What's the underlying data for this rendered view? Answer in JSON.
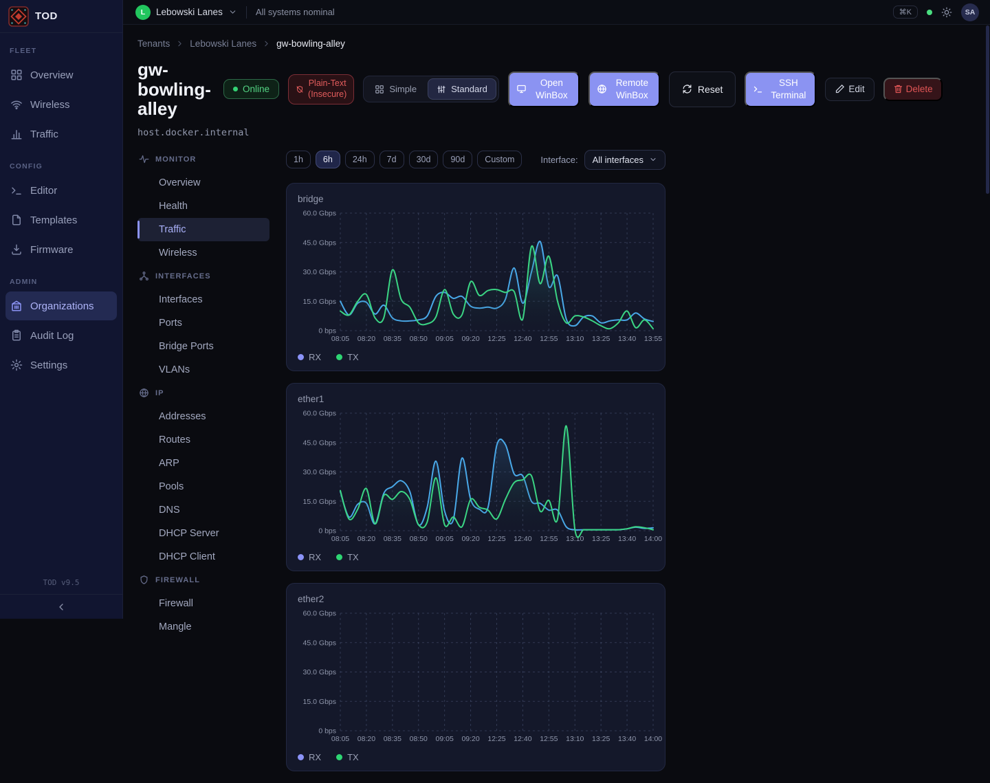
{
  "colors": {
    "accent": "#8b93f4",
    "green": "#2ed573",
    "blue": "#49a8e8",
    "red": "#e05555"
  },
  "sidebar": {
    "brand": "TOD",
    "version": "TOD v9.5",
    "sections": [
      {
        "label": "FLEET",
        "items": [
          {
            "label": "Overview",
            "icon": "grid-icon",
            "active": false
          },
          {
            "label": "Wireless",
            "icon": "wifi-icon",
            "active": false
          },
          {
            "label": "Traffic",
            "icon": "bar-chart-icon",
            "active": false
          }
        ]
      },
      {
        "label": "CONFIG",
        "items": [
          {
            "label": "Editor",
            "icon": "terminal-icon",
            "active": false
          },
          {
            "label": "Templates",
            "icon": "file-icon",
            "active": false
          },
          {
            "label": "Firmware",
            "icon": "download-icon",
            "active": false
          }
        ]
      },
      {
        "label": "ADMIN",
        "items": [
          {
            "label": "Organizations",
            "icon": "building-icon",
            "active": true
          },
          {
            "label": "Audit Log",
            "icon": "clipboard-icon",
            "active": false
          },
          {
            "label": "Settings",
            "icon": "gear-icon",
            "active": false
          }
        ]
      }
    ]
  },
  "topbar": {
    "tenant": "Lebowski Lanes",
    "tenant_initial": "L",
    "status": "All systems nominal",
    "shortcut": "⌘K",
    "user_initials": "SA"
  },
  "breadcrumb": {
    "items": [
      "Tenants",
      "Lebowski Lanes",
      "gw-bowling-alley"
    ]
  },
  "device": {
    "name": "gw-bowling-alley",
    "status": "Online",
    "warning_line1": "Plain-Text",
    "warning_line2": "(Insecure)",
    "host": "host.docker.internal"
  },
  "view_toggle": {
    "options": [
      "Simple",
      "Standard"
    ],
    "selected": "Standard"
  },
  "actions": {
    "open_winbox": "Open WinBox",
    "remote_winbox": "Remote WinBox",
    "reset": "Reset",
    "ssh_terminal": "SSH Terminal",
    "edit": "Edit",
    "delete": "Delete"
  },
  "device_nav": {
    "sections": [
      {
        "label": "MONITOR",
        "icon": "activity-icon",
        "items": [
          "Overview",
          "Health",
          "Traffic",
          "Wireless"
        ],
        "active_item": "Traffic"
      },
      {
        "label": "INTERFACES",
        "icon": "network-icon",
        "items": [
          "Interfaces",
          "Ports",
          "Bridge Ports",
          "VLANs"
        ],
        "active_item": ""
      },
      {
        "label": "IP",
        "icon": "globe-icon",
        "items": [
          "Addresses",
          "Routes",
          "ARP",
          "Pools",
          "DNS",
          "DHCP Server",
          "DHCP Client"
        ],
        "active_item": ""
      },
      {
        "label": "FIREWALL",
        "icon": "shield-icon",
        "items": [
          "Firewall",
          "Mangle"
        ],
        "active_item": ""
      }
    ]
  },
  "controls": {
    "time_ranges": [
      "1h",
      "6h",
      "24h",
      "7d",
      "30d",
      "90d",
      "Custom"
    ],
    "selected_range": "6h",
    "interface_label": "Interface:",
    "interface_value": "All interfaces"
  },
  "chart_data": [
    {
      "type": "line",
      "title": "bridge",
      "ylim": [
        0,
        60
      ],
      "y_ticks": {
        "values": [
          0,
          15,
          30,
          45,
          60
        ],
        "labels": [
          "0 bps",
          "15.0 Gbps",
          "30.0 Gbps",
          "45.0 Gbps",
          "60.0 Gbps"
        ]
      },
      "x_ticks": [
        "08:05",
        "08:20",
        "08:35",
        "08:50",
        "09:05",
        "09:20",
        "12:25",
        "12:40",
        "12:55",
        "13:10",
        "13:25",
        "13:40",
        "13:55"
      ],
      "grid": "dashed",
      "legend_position": "bottom-left",
      "series": [
        {
          "name": "RX",
          "line_color": "#49a8e8",
          "legend_color": "#8b93f8",
          "values": [
            15,
            8,
            14,
            14.5,
            8.5,
            13,
            6.5,
            5,
            5,
            5.5,
            7.5,
            17.5,
            19.5,
            16.5,
            17.5,
            12.5,
            11.5,
            12,
            11.5,
            16,
            32,
            14,
            30,
            45.5,
            22.5,
            28,
            6,
            2.5,
            7,
            7.5,
            4,
            5,
            5.5,
            5.5,
            9,
            6,
            4.7
          ]
        },
        {
          "name": "TX",
          "line_color": "#3bd584",
          "legend_color": "#2ed573",
          "values": [
            10,
            8,
            15,
            18.5,
            6.5,
            6.5,
            31,
            16,
            12,
            4,
            3.5,
            7,
            21,
            8.5,
            8,
            25,
            18,
            20.5,
            21,
            19.5,
            20,
            6,
            43,
            24,
            38,
            15,
            4,
            7.5,
            7,
            5,
            2.5,
            1,
            4,
            10,
            1.5,
            5.5,
            1
          ]
        }
      ]
    },
    {
      "type": "line",
      "title": "ether1",
      "ylim": [
        0,
        60
      ],
      "y_ticks": {
        "values": [
          0,
          15,
          30,
          45,
          60
        ],
        "labels": [
          "0 bps",
          "15.0 Gbps",
          "30.0 Gbps",
          "45.0 Gbps",
          "60.0 Gbps"
        ]
      },
      "x_ticks": [
        "08:05",
        "08:20",
        "08:35",
        "08:50",
        "09:05",
        "09:20",
        "12:25",
        "12:40",
        "12:55",
        "13:10",
        "13:25",
        "13:40",
        "14:00"
      ],
      "grid": "dashed",
      "legend_position": "bottom-left",
      "series": [
        {
          "name": "RX",
          "line_color": "#49a8e8",
          "legend_color": "#8b93f8",
          "values": [
            20,
            7,
            13.5,
            14,
            3.5,
            19,
            22.5,
            25.5,
            20,
            3,
            12,
            35.5,
            10,
            5.5,
            37,
            16,
            11,
            12,
            43.5,
            44,
            29,
            28,
            15,
            14,
            10.5,
            10.5,
            2,
            0.5,
            0.5,
            0.5,
            0.5,
            0.5,
            0.5,
            1,
            1.8,
            1.2,
            1.5
          ]
        },
        {
          "name": "TX",
          "line_color": "#3bd584",
          "legend_color": "#2ed573",
          "values": [
            20.5,
            6,
            11,
            21.5,
            3.5,
            18,
            16,
            20,
            16,
            3,
            4.5,
            27,
            3,
            7,
            2,
            16,
            12,
            10.5,
            6,
            16,
            24.5,
            26,
            28,
            10,
            15.5,
            6,
            53.5,
            0.5,
            0.5,
            0.5,
            0.5,
            0.5,
            0.5,
            1,
            2,
            1.5,
            0.5
          ]
        }
      ]
    },
    {
      "type": "line",
      "title": "ether2",
      "ylim": [
        0,
        60
      ],
      "y_ticks": {
        "values": [
          0,
          15,
          30,
          45,
          60
        ],
        "labels": [
          "0 bps",
          "15.0 Gbps",
          "30.0 Gbps",
          "45.0 Gbps",
          "60.0 Gbps"
        ]
      },
      "x_ticks": [
        "08:05",
        "08:20",
        "08:35",
        "08:50",
        "09:05",
        "09:20",
        "12:25",
        "12:40",
        "12:55",
        "13:10",
        "13:25",
        "13:40",
        "14:00"
      ],
      "grid": "dashed",
      "legend_position": "bottom-left",
      "series": [
        {
          "name": "RX",
          "line_color": "#49a8e8",
          "legend_color": "#8b93f8",
          "values": []
        },
        {
          "name": "TX",
          "line_color": "#3bd584",
          "legend_color": "#2ed573",
          "values": []
        }
      ]
    }
  ]
}
